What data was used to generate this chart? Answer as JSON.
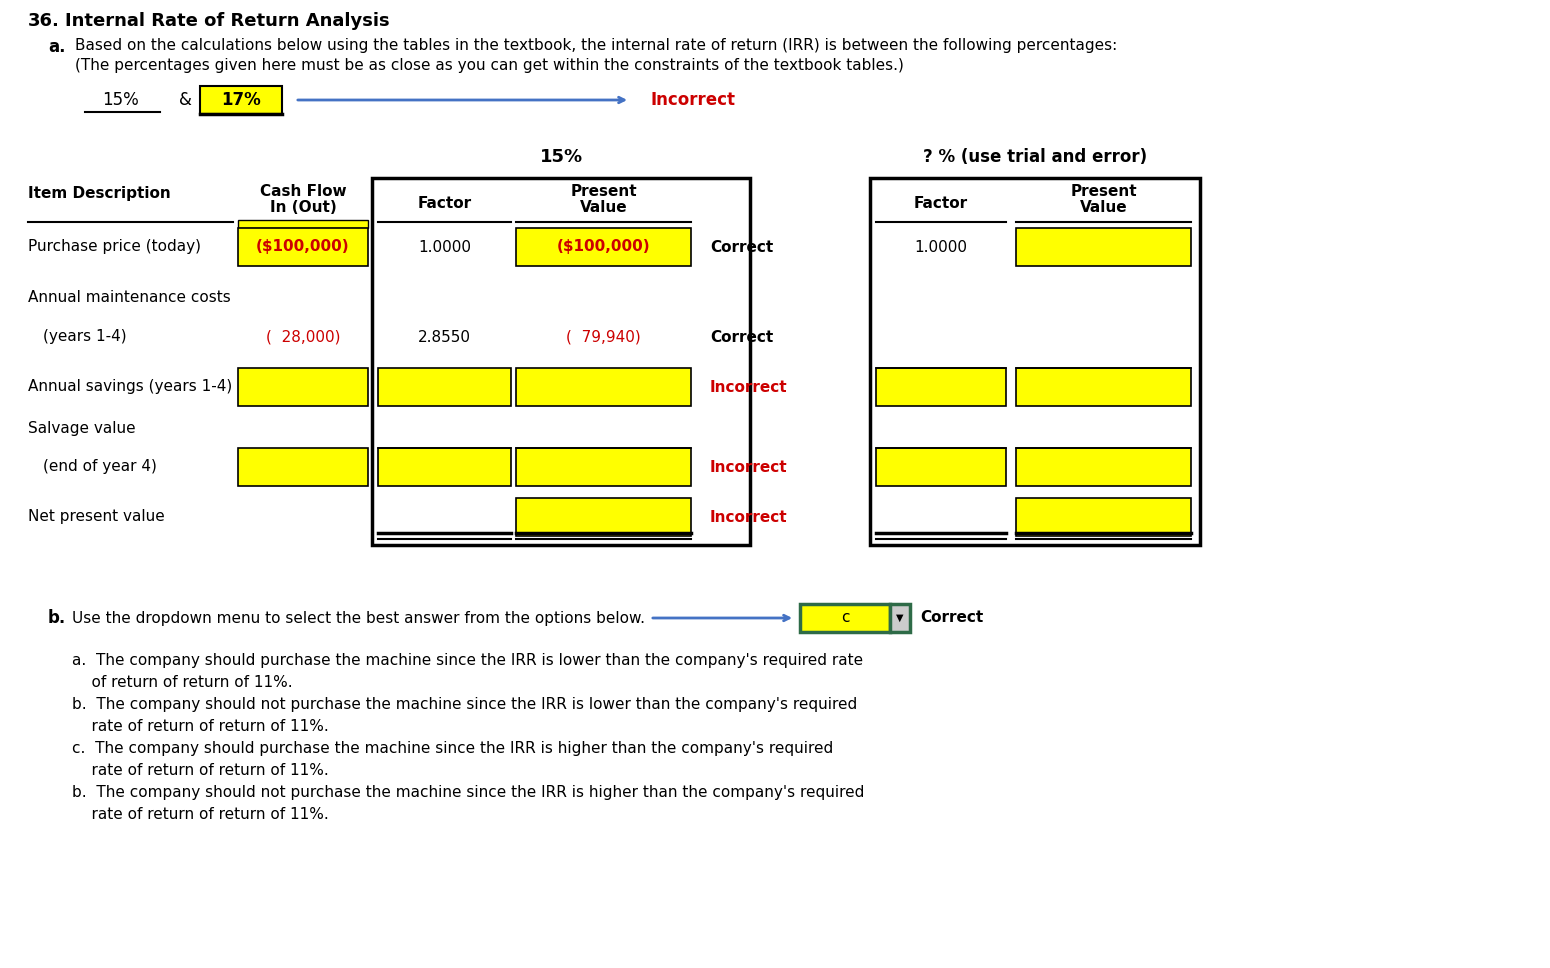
{
  "title_num": "36.",
  "title_text": "Internal Rate of Return Analysis",
  "sub_a": "a.",
  "sub_a_line1": "Based on the calculations below using the tables in the textbook, the internal rate of return (IRR) is between the following percentages:",
  "sub_a_line2": "(The percentages given here must be as close as you can get within the constraints of the textbook tables.)",
  "pct1": "15%",
  "amp": "&",
  "pct2": "17%",
  "incorrect_red": "Incorrect",
  "sec_15": "15%",
  "sec_q": "? % (use trial and error)",
  "hdr_item": "Item Description",
  "hdr_cf1": "Cash Flow",
  "hdr_cf2": "In (Out)",
  "hdr_factor": "Factor",
  "hdr_pv1": "Present",
  "hdr_pv2": "Value",
  "row1_item": "Purchase price (today)",
  "row1_cf": "($100,000)",
  "row1_f15": "1.0000",
  "row1_pv15": "($100,000)",
  "row1_status": "Correct",
  "row1_fq": "1.0000",
  "row2_item": "Annual maintenance costs",
  "row3_item": "    (years 1-4)",
  "row3_cf": "(  28,000)",
  "row3_f15": "2.8550",
  "row3_pv15": "(  79,940)",
  "row3_status": "Correct",
  "row4_item": "Annual savings (years 1-4)",
  "row4_status": "Incorrect",
  "row5_item": "Salvage value",
  "row6_item": "    (end of year 4)",
  "row6_status": "Incorrect",
  "row7_item": "Net present value",
  "row7_status": "Incorrect",
  "sub_b": "b.",
  "sub_b_text": "Use the dropdown menu to select the best answer from the options below.",
  "dropdown_val": "c",
  "correct_lbl": "Correct",
  "opt1a": "a.  The company should purchase the machine since the IRR is lower than the company's required rate",
  "opt1b": "    of return of return of 11%.",
  "opt2a": "b.  The company should not purchase the machine since the IRR is lower than the company's required",
  "opt2b": "    rate of return of return of 11%.",
  "opt3a": "c.  The company should purchase the machine since the IRR is higher than the company's required",
  "opt3b": "    rate of return of return of 11%.",
  "opt4a": "b.  The company should not purchase the machine since the IRR is higher than the company's required",
  "opt4b": "    rate of return of return of 11%.",
  "yellow": "#FFFF00",
  "red": "#CC0000",
  "black": "#000000",
  "white": "#FFFFFF",
  "blue": "#4472C4",
  "green": "#2E6B47",
  "bg": "#FFFFFF"
}
